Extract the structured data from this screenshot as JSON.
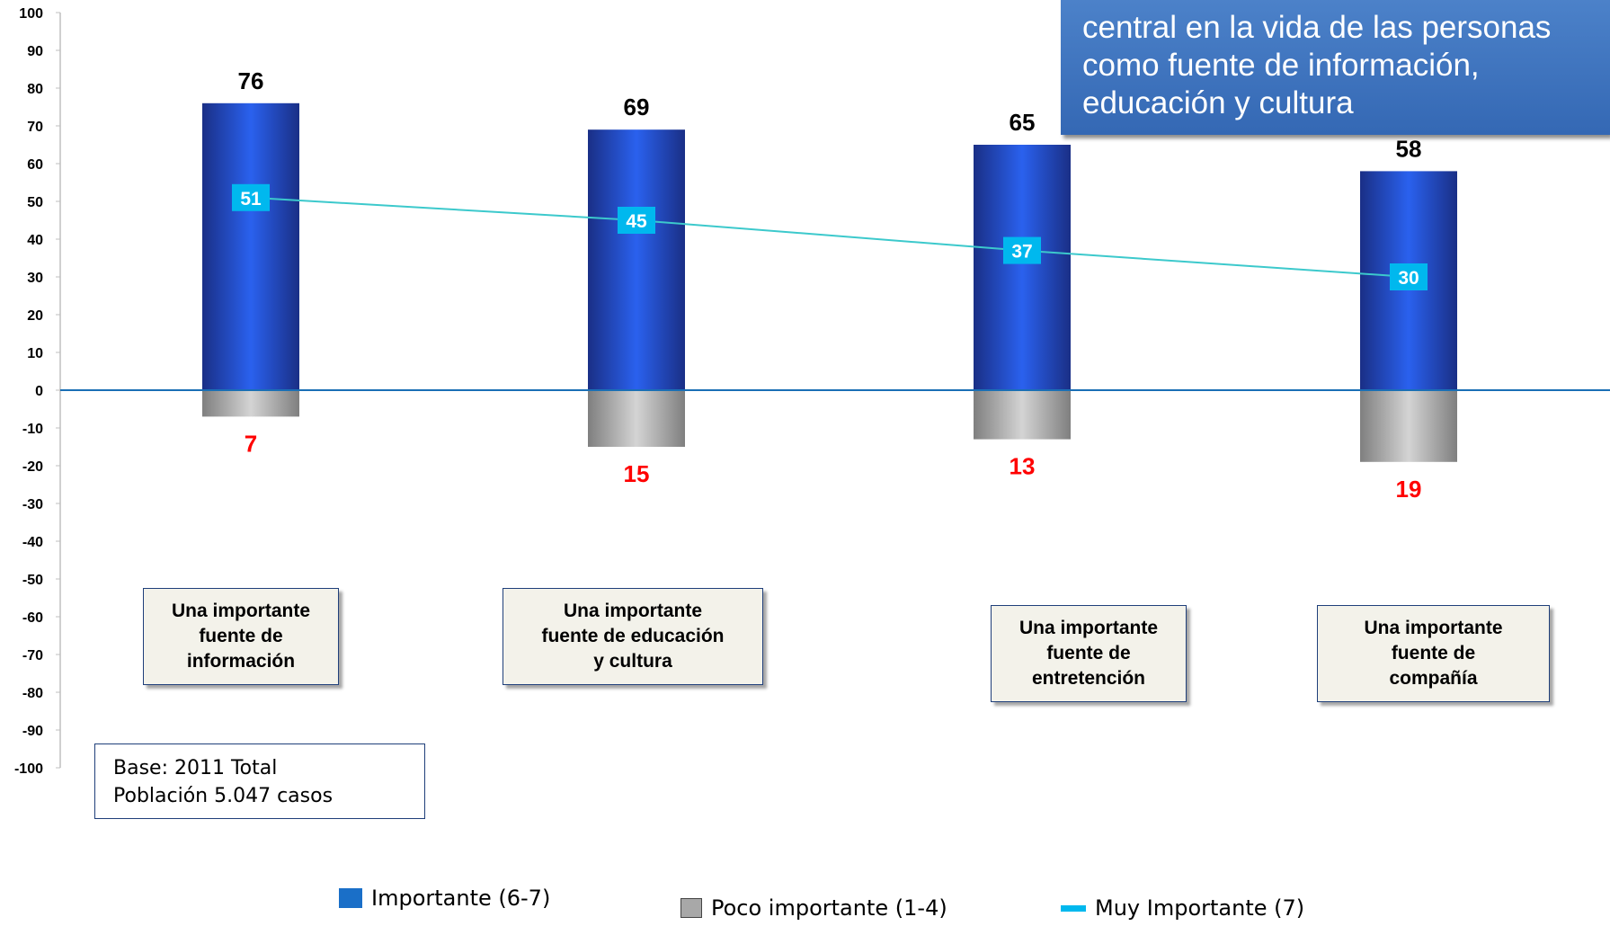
{
  "callout": {
    "lines": [
      "",
      "central en la vida de las personas",
      "como fuente de información,",
      "educación y cultura"
    ]
  },
  "note": {
    "line1": "Base: 2011 Total",
    "line2": "Población 5.047 casos"
  },
  "legend": {
    "importante": "Importante  (6-7)",
    "poco": "Poco importante (1-4)",
    "muy": "Muy Importante  (7)"
  },
  "colors": {
    "importante": "#1f4fd6",
    "poco": "#a8a8a8",
    "muy": "#00b8ee",
    "negative_label": "#ff0000",
    "zero_line": "#1a6fb5"
  },
  "chart_data": {
    "type": "bar",
    "categories": [
      [
        "Una importante",
        "fuente de",
        "información"
      ],
      [
        "Una importante",
        "fuente de educación",
        "y cultura"
      ],
      [
        "Una importante",
        "fuente de",
        "entretención"
      ],
      [
        "Una importante",
        "fuente de",
        "compañía"
      ]
    ],
    "series": [
      {
        "name": "Importante  (6-7)",
        "values": [
          76,
          69,
          65,
          58
        ]
      },
      {
        "name": "Poco importante (1-4)",
        "values": [
          -7,
          -15,
          -13,
          -19
        ],
        "labels": [
          "7",
          "15",
          "13",
          "19"
        ]
      },
      {
        "name": "Muy Importante  (7)",
        "type": "line",
        "values": [
          51,
          45,
          37,
          30
        ]
      }
    ],
    "ylim": [
      -100,
      100
    ],
    "yticks": [
      100,
      90,
      80,
      70,
      60,
      50,
      40,
      30,
      20,
      10,
      0,
      -10,
      -20,
      -30,
      -40,
      -50,
      -60,
      -70,
      -80,
      -90,
      -100
    ],
    "legend_position": "bottom"
  }
}
